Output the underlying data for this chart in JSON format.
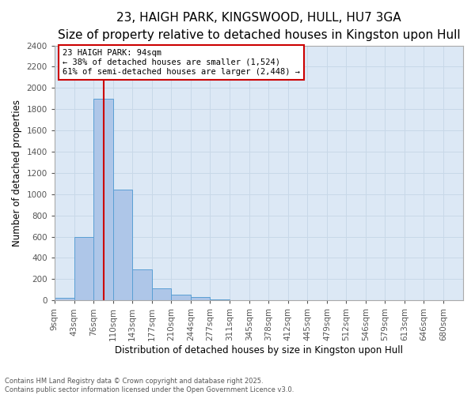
{
  "title_line1": "23, HAIGH PARK, KINGSWOOD, HULL, HU7 3GA",
  "title_line2": "Size of property relative to detached houses in Kingston upon Hull",
  "xlabel": "Distribution of detached houses by size in Kingston upon Hull",
  "ylabel": "Number of detached properties",
  "bin_edges": [
    9,
    43,
    76,
    110,
    143,
    177,
    210,
    244,
    277,
    311,
    345,
    378,
    412,
    445,
    479,
    512,
    546,
    579,
    613,
    646,
    680
  ],
  "bar_heights": [
    25,
    600,
    1900,
    1040,
    295,
    115,
    55,
    30,
    8,
    3,
    2,
    1,
    1,
    0,
    0,
    0,
    0,
    0,
    0,
    0
  ],
  "bar_color": "#aec6e8",
  "bar_edge_color": "#5a9fd4",
  "grid_color": "#c8d8e8",
  "background_color": "#dce8f5",
  "property_size": 94,
  "red_line_color": "#cc0000",
  "annotation_text": "23 HAIGH PARK: 94sqm\n← 38% of detached houses are smaller (1,524)\n61% of semi-detached houses are larger (2,448) →",
  "annotation_box_color": "#cc0000",
  "ylim": [
    0,
    2400
  ],
  "yticks": [
    0,
    200,
    400,
    600,
    800,
    1000,
    1200,
    1400,
    1600,
    1800,
    2000,
    2200,
    2400
  ],
  "footnote": "Contains HM Land Registry data © Crown copyright and database right 2025.\nContains public sector information licensed under the Open Government Licence v3.0.",
  "title_fontsize": 11,
  "subtitle_fontsize": 9.5,
  "axis_label_fontsize": 8.5,
  "tick_fontsize": 7.5,
  "annotation_fontsize": 7.5
}
